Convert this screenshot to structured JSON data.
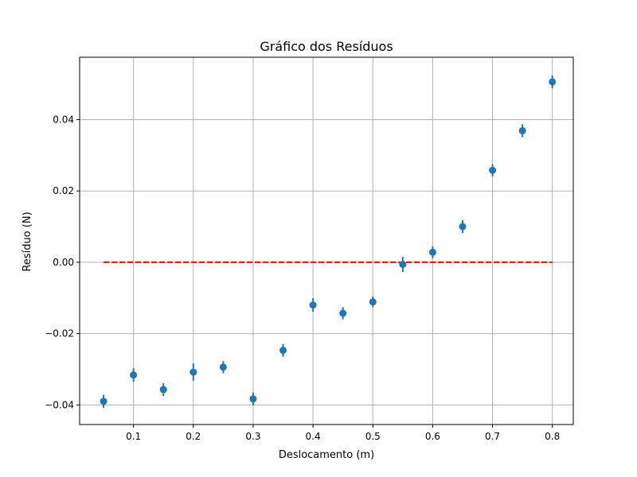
{
  "chart_data": {
    "type": "scatter",
    "title": "Gráfico dos Resíduos",
    "xlabel": "Deslocamento (m)",
    "ylabel": "Resíduo (N)",
    "xlim": [
      0.01,
      0.835
    ],
    "ylim": [
      -0.0455,
      0.0575
    ],
    "xticks": [
      0.1,
      0.2,
      0.3,
      0.4,
      0.5,
      0.6,
      0.7,
      0.8
    ],
    "xtick_labels": [
      "0.1",
      "0.2",
      "0.3",
      "0.4",
      "0.5",
      "0.6",
      "0.7",
      "0.8"
    ],
    "yticks": [
      -0.04,
      -0.02,
      0.0,
      0.02,
      0.04
    ],
    "ytick_labels": [
      "−0.04",
      "−0.02",
      "0.00",
      "0.02",
      "0.04"
    ],
    "grid": true,
    "marker_color": "#1f77b4",
    "reference_line": {
      "y": 0.0,
      "x_range": [
        0.05,
        0.8
      ],
      "color": "#ff0000",
      "style": "dashed"
    },
    "points": [
      {
        "x": 0.05,
        "y": -0.039,
        "err": 0.0018
      },
      {
        "x": 0.1,
        "y": -0.0316,
        "err": 0.0019
      },
      {
        "x": 0.15,
        "y": -0.0357,
        "err": 0.0018
      },
      {
        "x": 0.2,
        "y": -0.0308,
        "err": 0.0024
      },
      {
        "x": 0.25,
        "y": -0.0294,
        "err": 0.0017
      },
      {
        "x": 0.3,
        "y": -0.0383,
        "err": 0.0018
      },
      {
        "x": 0.35,
        "y": -0.0247,
        "err": 0.0018
      },
      {
        "x": 0.4,
        "y": -0.012,
        "err": 0.0019
      },
      {
        "x": 0.45,
        "y": -0.0143,
        "err": 0.0017
      },
      {
        "x": 0.5,
        "y": -0.0111,
        "err": 0.0015
      },
      {
        "x": 0.55,
        "y": -0.0006,
        "err": 0.0021
      },
      {
        "x": 0.6,
        "y": 0.0028,
        "err": 0.0017
      },
      {
        "x": 0.65,
        "y": 0.01,
        "err": 0.0018
      },
      {
        "x": 0.7,
        "y": 0.0258,
        "err": 0.0017
      },
      {
        "x": 0.75,
        "y": 0.0369,
        "err": 0.0018
      },
      {
        "x": 0.8,
        "y": 0.0506,
        "err": 0.0018
      }
    ]
  }
}
